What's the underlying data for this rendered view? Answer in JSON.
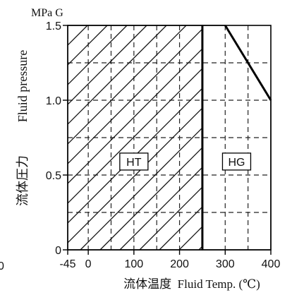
{
  "chart_data": {
    "type": "area",
    "unit_label": "MPa G",
    "ylabel_en": "Fluid pressure",
    "ylabel_jp": "流体圧力",
    "xlabel": "流体温度  Fluid Temp. (℃)",
    "x_ticks": [
      "-45",
      "0",
      "100",
      "200",
      "300",
      "400"
    ],
    "x_tick_values": [
      -45,
      0,
      100,
      200,
      300,
      400
    ],
    "y_ticks": [
      "0",
      "0.5",
      "1.0",
      "1.5"
    ],
    "y_tick_values": [
      0,
      0.5,
      1.0,
      1.5
    ],
    "xlim": [
      -45,
      400
    ],
    "ylim": [
      0,
      1.5
    ],
    "stray_label": "0",
    "grid": "dashed",
    "regions": [
      {
        "name": "HT",
        "fill": "hatched",
        "points": [
          [
            -45,
            0
          ],
          [
            250,
            0
          ],
          [
            250,
            1.5
          ],
          [
            -45,
            1.5
          ]
        ]
      },
      {
        "name": "HG",
        "fill": "blank",
        "points": [
          [
            250,
            0
          ],
          [
            400,
            0
          ],
          [
            400,
            1.0
          ],
          [
            300,
            1.5
          ],
          [
            250,
            1.5
          ]
        ]
      }
    ]
  }
}
